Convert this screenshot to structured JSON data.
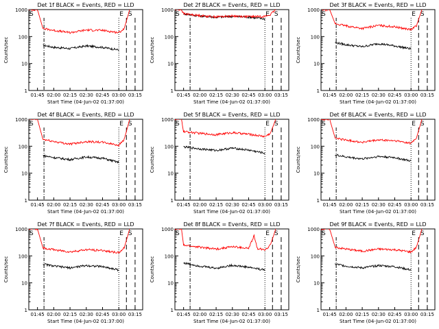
{
  "colors": {
    "events": "#000000",
    "lld": "#ff0000",
    "axis": "#000000",
    "background": "#ffffff"
  },
  "xlabel": "Start Time (04-Jun-02 01:37:00)",
  "ylabel": "Counts/sec",
  "x_ticks": [
    "01:45",
    "02:00",
    "02:15",
    "02:30",
    "02:45",
    "03:00",
    "03:15"
  ],
  "y_ticks": [
    "1",
    "10",
    "100",
    "1000"
  ],
  "markers": {
    "s": "S",
    "e": "E"
  },
  "chart_data": [
    {
      "type": "line",
      "title": "Det 1f BLACK = Events, RED = LLD",
      "yscale": "log",
      "ylim": [
        1,
        1000
      ],
      "xlim": [
        "01:37",
        "03:22"
      ],
      "series": [
        {
          "name": "Events",
          "color": "#000000",
          "x": [
            "01:50",
            "02:00",
            "02:15",
            "02:30",
            "02:45",
            "03:00"
          ],
          "values": [
            48,
            40,
            36,
            45,
            40,
            32
          ]
        },
        {
          "name": "LLD",
          "color": "#ff0000",
          "x": [
            "01:37",
            "01:45",
            "01:50",
            "02:00",
            "02:15",
            "02:30",
            "02:45",
            "03:00",
            "03:05",
            "03:10"
          ],
          "values": [
            1000,
            1000,
            200,
            170,
            140,
            175,
            170,
            140,
            200,
            1000
          ]
        }
      ]
    },
    {
      "type": "line",
      "title": "Det 2f BLACK = Events, RED = LLD",
      "yscale": "log",
      "ylim": [
        1,
        1000
      ],
      "xlim": [
        "01:37",
        "03:22"
      ],
      "series": [
        {
          "name": "Events",
          "color": "#000000",
          "x": [
            "01:45",
            "02:00",
            "02:15",
            "02:30",
            "02:45",
            "03:00"
          ],
          "values": [
            700,
            580,
            520,
            560,
            530,
            450
          ]
        },
        {
          "name": "LLD",
          "color": "#ff0000",
          "x": [
            "01:37",
            "01:43",
            "01:45",
            "02:00",
            "02:15",
            "02:30",
            "02:45",
            "03:00",
            "03:05",
            "03:10"
          ],
          "values": [
            1000,
            1000,
            700,
            600,
            540,
            580,
            550,
            560,
            650,
            1000
          ]
        }
      ]
    },
    {
      "type": "line",
      "title": "Det 3f BLACK = Events, RED = LLD",
      "yscale": "log",
      "ylim": [
        1,
        1000
      ],
      "xlim": [
        "01:37",
        "03:22"
      ],
      "series": [
        {
          "name": "Events",
          "color": "#000000",
          "x": [
            "01:50",
            "02:00",
            "02:15",
            "02:30",
            "02:45",
            "03:00"
          ],
          "values": [
            60,
            50,
            42,
            55,
            45,
            35
          ]
        },
        {
          "name": "LLD",
          "color": "#ff0000",
          "x": [
            "01:37",
            "01:45",
            "01:50",
            "02:00",
            "02:15",
            "02:30",
            "02:45",
            "03:00",
            "03:05",
            "03:10"
          ],
          "values": [
            1000,
            1000,
            300,
            250,
            200,
            260,
            230,
            180,
            250,
            1000
          ]
        }
      ]
    },
    {
      "type": "line",
      "title": "Det 4f BLACK = Events, RED = LLD",
      "yscale": "log",
      "ylim": [
        1,
        1000
      ],
      "xlim": [
        "01:37",
        "03:22"
      ],
      "series": [
        {
          "name": "Events",
          "color": "#000000",
          "x": [
            "01:50",
            "02:00",
            "02:15",
            "02:30",
            "02:45",
            "03:00"
          ],
          "values": [
            45,
            38,
            32,
            40,
            36,
            25
          ]
        },
        {
          "name": "LLD",
          "color": "#ff0000",
          "x": [
            "01:37",
            "01:45",
            "01:50",
            "02:00",
            "02:15",
            "02:30",
            "02:45",
            "03:00",
            "03:05",
            "03:10"
          ],
          "values": [
            1000,
            1000,
            180,
            150,
            120,
            150,
            140,
            110,
            180,
            1000
          ]
        }
      ]
    },
    {
      "type": "line",
      "title": "Det 5f BLACK = Events, RED = LLD",
      "yscale": "log",
      "ylim": [
        1,
        1000
      ],
      "xlim": [
        "01:37",
        "03:22"
      ],
      "series": [
        {
          "name": "Events",
          "color": "#000000",
          "x": [
            "01:45",
            "02:00",
            "02:15",
            "02:30",
            "02:45",
            "03:00"
          ],
          "values": [
            95,
            80,
            70,
            85,
            72,
            55
          ]
        },
        {
          "name": "LLD",
          "color": "#ff0000",
          "x": [
            "01:37",
            "01:43",
            "01:45",
            "02:00",
            "02:15",
            "02:30",
            "02:45",
            "03:00",
            "03:05",
            "03:10"
          ],
          "values": [
            1000,
            1000,
            350,
            300,
            270,
            320,
            280,
            230,
            300,
            1000
          ]
        }
      ]
    },
    {
      "type": "line",
      "title": "Det 6f BLACK = Events, RED = LLD",
      "yscale": "log",
      "ylim": [
        1,
        1000
      ],
      "xlim": [
        "01:37",
        "03:22"
      ],
      "series": [
        {
          "name": "Events",
          "color": "#000000",
          "x": [
            "01:50",
            "02:00",
            "02:15",
            "02:30",
            "02:45",
            "03:00"
          ],
          "values": [
            48,
            40,
            34,
            42,
            38,
            28
          ]
        },
        {
          "name": "LLD",
          "color": "#ff0000",
          "x": [
            "01:37",
            "01:45",
            "01:50",
            "02:00",
            "02:15",
            "02:30",
            "02:45",
            "03:00",
            "03:05",
            "03:10"
          ],
          "values": [
            1000,
            1000,
            200,
            170,
            140,
            170,
            160,
            130,
            200,
            1000
          ]
        }
      ]
    },
    {
      "type": "line",
      "title": "Det 7f BLACK = Events, RED = LLD",
      "yscale": "log",
      "ylim": [
        1,
        1000
      ],
      "xlim": [
        "01:37",
        "03:22"
      ],
      "series": [
        {
          "name": "Events",
          "color": "#000000",
          "x": [
            "01:50",
            "02:00",
            "02:15",
            "02:30",
            "02:45",
            "03:00"
          ],
          "values": [
            50,
            42,
            36,
            44,
            40,
            30
          ]
        },
        {
          "name": "LLD",
          "color": "#ff0000",
          "x": [
            "01:37",
            "01:45",
            "01:50",
            "02:00",
            "02:15",
            "02:30",
            "02:45",
            "03:00",
            "03:05",
            "03:10"
          ],
          "values": [
            1000,
            1000,
            200,
            170,
            140,
            170,
            160,
            130,
            200,
            1000
          ]
        }
      ]
    },
    {
      "type": "line",
      "title": "Det 8f BLACK = Events, RED = LLD",
      "yscale": "log",
      "ylim": [
        1,
        1000
      ],
      "xlim": [
        "01:37",
        "03:22"
      ],
      "series": [
        {
          "name": "Events",
          "color": "#000000",
          "x": [
            "01:45",
            "02:00",
            "02:15",
            "02:30",
            "02:45",
            "03:00"
          ],
          "values": [
            55,
            42,
            35,
            45,
            38,
            30
          ]
        },
        {
          "name": "LLD",
          "color": "#ff0000",
          "x": [
            "01:37",
            "01:43",
            "01:45",
            "02:00",
            "02:15",
            "02:30",
            "02:45",
            "02:50",
            "02:53",
            "03:00",
            "03:05",
            "03:10"
          ],
          "values": [
            1000,
            1000,
            250,
            210,
            180,
            220,
            190,
            550,
            190,
            170,
            250,
            1000
          ]
        }
      ]
    },
    {
      "type": "line",
      "title": "Det 9f BLACK = Events, RED = LLD",
      "yscale": "log",
      "ylim": [
        1,
        1000
      ],
      "xlim": [
        "01:37",
        "03:22"
      ],
      "series": [
        {
          "name": "Events",
          "color": "#000000",
          "x": [
            "01:50",
            "02:00",
            "02:15",
            "02:30",
            "02:45",
            "03:00"
          ],
          "values": [
            50,
            42,
            36,
            44,
            40,
            30
          ]
        },
        {
          "name": "LLD",
          "color": "#ff0000",
          "x": [
            "01:37",
            "01:45",
            "01:50",
            "02:00",
            "02:15",
            "02:30",
            "02:45",
            "03:00",
            "03:05",
            "03:10"
          ],
          "values": [
            1000,
            1000,
            210,
            180,
            150,
            180,
            170,
            140,
            210,
            1000
          ]
        }
      ]
    }
  ]
}
